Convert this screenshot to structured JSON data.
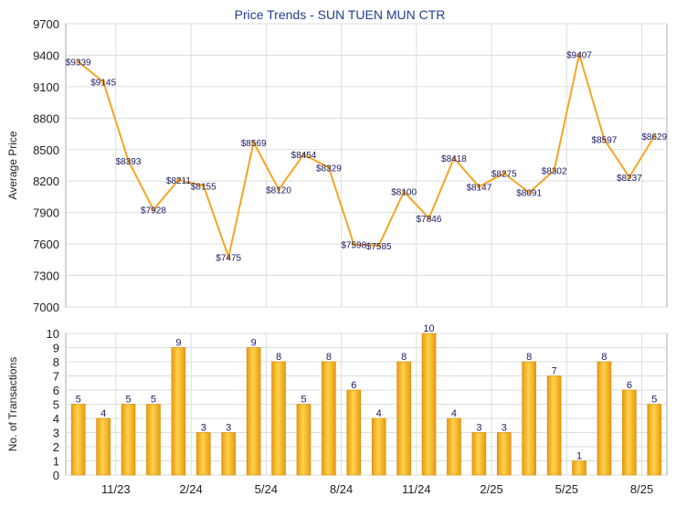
{
  "chart_data": [
    {
      "type": "line",
      "title": "Price Trends - SUN TUEN MUN CTR",
      "ylabel": "Average Price",
      "ylim": [
        7000,
        9700
      ],
      "yticks": [
        7000,
        7300,
        7600,
        7900,
        8200,
        8500,
        8800,
        9100,
        9400,
        9700
      ],
      "grid": true,
      "values": [
        9339,
        9145,
        8393,
        7928,
        8211,
        8155,
        7475,
        8569,
        8120,
        8454,
        8329,
        7598,
        7585,
        8100,
        7846,
        8418,
        8147,
        8275,
        8091,
        8302,
        9407,
        8597,
        8237,
        8629
      ],
      "labels": [
        "$9339",
        "$9145",
        "$8393",
        "$7928",
        "$8211",
        "$8155",
        "$7475",
        "$8569",
        "$8120",
        "$8454",
        "$8329",
        "$7598",
        "$7585",
        "$8100",
        "$7846",
        "$8418",
        "$8147",
        "$8275",
        "$8091",
        "$8302",
        "$9407",
        "$8597",
        "$8237",
        "$8629"
      ],
      "color": "#f5a623"
    },
    {
      "type": "bar",
      "ylabel": "No. of Transactions",
      "ylim": [
        0,
        10
      ],
      "yticks": [
        0,
        1,
        2,
        3,
        4,
        5,
        6,
        7,
        8,
        9,
        10
      ],
      "grid": true,
      "values": [
        5,
        4,
        5,
        5,
        9,
        3,
        3,
        9,
        8,
        5,
        8,
        6,
        4,
        8,
        10,
        4,
        3,
        3,
        8,
        7,
        1,
        8,
        6,
        5
      ],
      "x_tick_labels": [
        "11/23",
        "2/24",
        "5/24",
        "8/24",
        "11/24",
        "2/25",
        "5/25",
        "8/25"
      ],
      "x_tick_positions": [
        2,
        5,
        8,
        11,
        14,
        17,
        20,
        23
      ],
      "color": "#f5a623"
    }
  ]
}
